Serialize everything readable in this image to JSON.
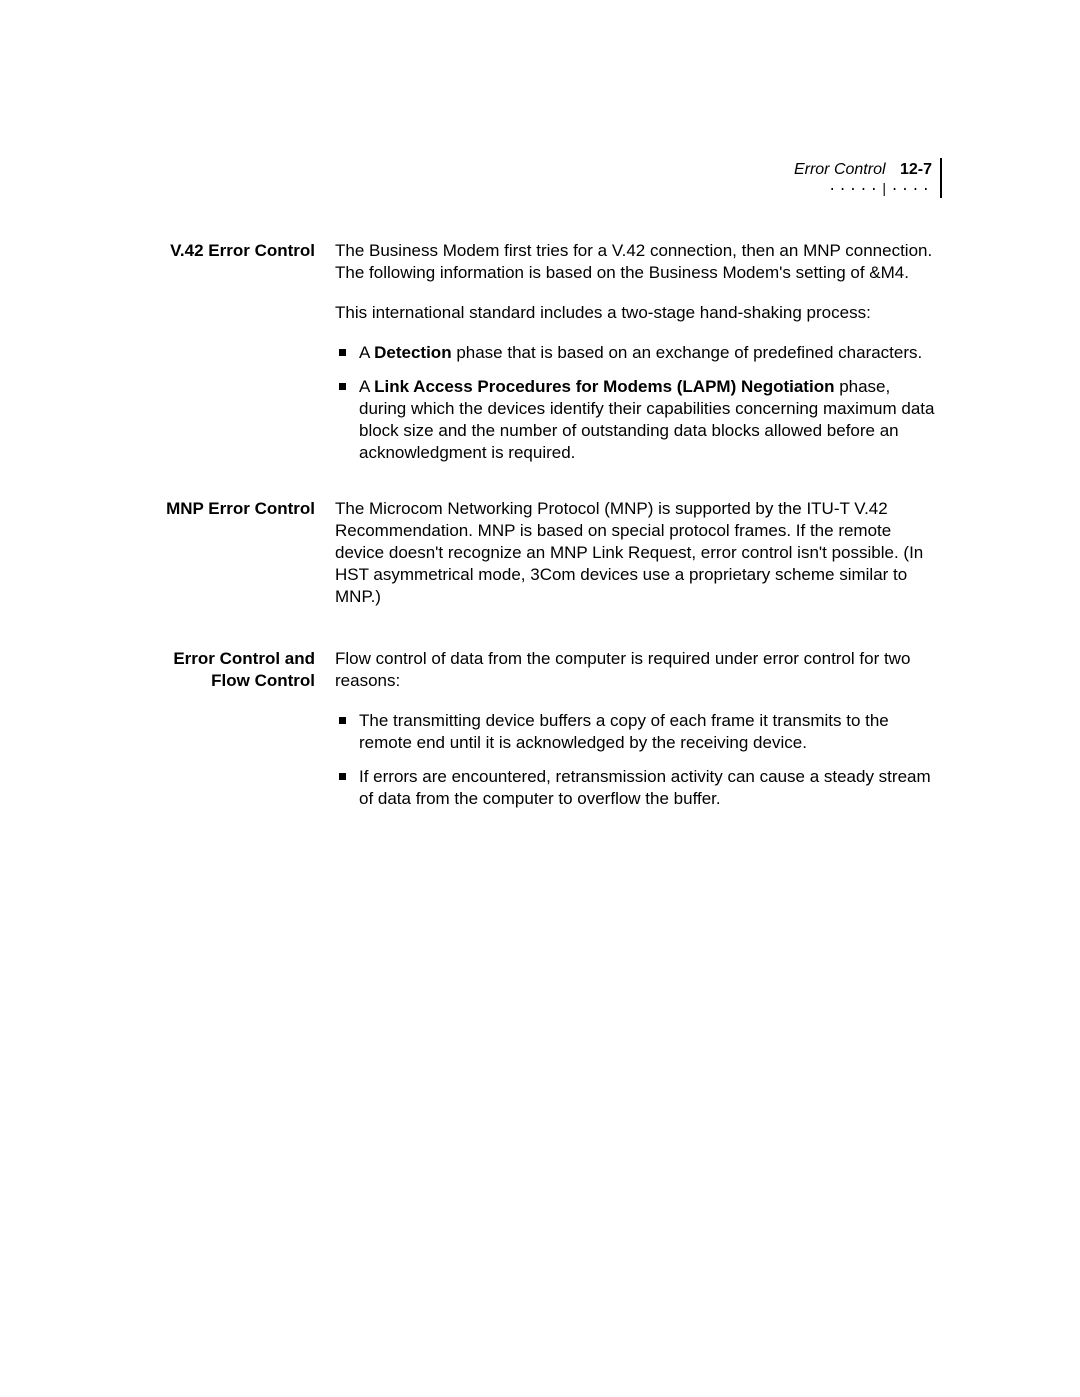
{
  "header": {
    "section_title": "Error Control",
    "page_number": "12-7",
    "dots": "·····|····"
  },
  "sections": {
    "v42": {
      "heading": "V.42 Error Control",
      "para1": "The Business Modem first tries for a V.42 connection, then an MNP connection. The following information is based on the Business Modem's setting of &M4.",
      "para2": "This international standard includes a two-stage hand-shaking process:",
      "bullet1_pre": "A ",
      "bullet1_bold": "Detection",
      "bullet1_post": " phase that is based on an exchange of predefined characters.",
      "bullet2_pre": "A ",
      "bullet2_bold": "Link Access Procedures for Modems (LAPM) Negotiation",
      "bullet2_post": " phase, during which the devices identify their capabilities concerning maximum data block size and the number of outstanding data blocks allowed before an acknowledgment is required."
    },
    "mnp": {
      "heading": "MNP Error Control",
      "para1": "The Microcom Networking Protocol (MNP) is supported by the ITU-T V.42 Recommendation. MNP is based on special protocol frames. If the remote device doesn't recognize an MNP Link Request, error control isn't possible. (In HST asymmetrical mode, 3Com devices use a proprietary scheme similar to MNP.)"
    },
    "flow": {
      "heading": "Error Control and Flow Control",
      "para1": "Flow control of data from the computer is required under error control for two reasons:",
      "bullet1": "The transmitting device buffers a copy of each frame it transmits to the remote end until it is acknowledged by the receiving device.",
      "bullet2": "If errors are encountered, retransmission activity can cause a steady stream of data from the computer to overflow the buffer."
    }
  }
}
